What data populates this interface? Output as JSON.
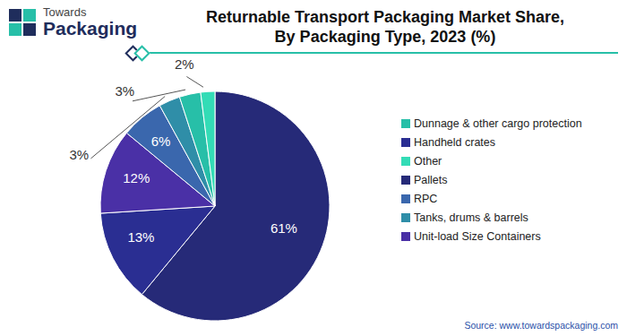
{
  "chart_data": {
    "type": "pie",
    "title": "Returnable Transport Packaging Market Share,\nBy Packaging Type, 2023 (%)",
    "categories": [
      "Pallets",
      "Handheld crates",
      "Unit-load Size Containers",
      "RPC",
      "Tanks, drums & barrels",
      "Dunnage & other cargo protection",
      "Other"
    ],
    "values": [
      61,
      13,
      12,
      6,
      3,
      3,
      2
    ],
    "value_labels": [
      "61%",
      "13%",
      "12%",
      "6%",
      "3%",
      "3%",
      "2%"
    ],
    "colors": [
      "#262a78",
      "#2a2e92",
      "#4a30a6",
      "#3a67ad",
      "#2f8ea8",
      "#27bfa8",
      "#33dcb6"
    ],
    "data_labels": true,
    "legend": "right"
  },
  "logo": [
    "Towards",
    "Packaging"
  ],
  "source": "Source: www.towardspackaging.com"
}
